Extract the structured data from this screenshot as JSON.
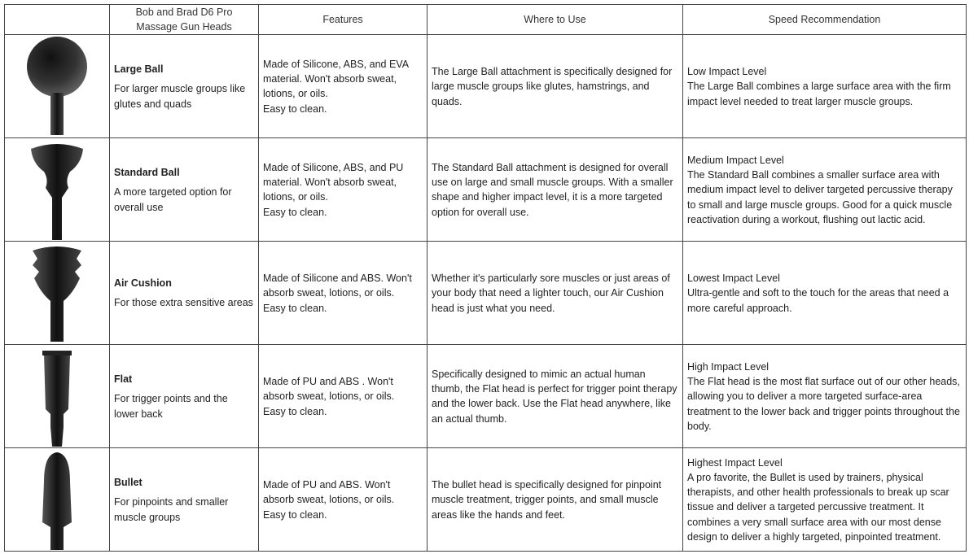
{
  "headers": [
    "",
    "Bob and Brad D6 Pro Massage Gun Heads",
    "Features",
    "Where to Use",
    "Speed Recommendation"
  ],
  "rows": [
    {
      "icon": "large-ball-head",
      "name": "Large Ball",
      "desc": "For larger muscle groups like glutes and quads",
      "features": "Made of Silicone, ABS, and EVA material. Won't absorb sweat, lotions, or oils.",
      "features_2": "Easy to clean.",
      "where": "The Large Ball attachment is specifically designed for large muscle groups like glutes, hamstrings, and quads.",
      "level": "Low Impact Level",
      "speed": "The Large Ball combines a large surface area with the firm impact level needed to treat larger muscle groups."
    },
    {
      "icon": "standard-ball-head",
      "name": "Standard Ball",
      "desc": "A more targeted option for overall use",
      "features": "Made of Silicone, ABS, and PU material. Won't absorb sweat, lotions, or oils.",
      "features_2": "Easy to clean.",
      "where": "The Standard Ball attachment is designed for overall use on large and small muscle groups. With a smaller shape and higher impact level, it is a more targeted option for overall use.",
      "level": "Medium Impact Level",
      "speed": "The Standard Ball combines a smaller surface area with medium impact level to deliver targeted percussive therapy to small and large muscle groups. Good for a quick muscle reactivation during a workout, flushing out lactic acid."
    },
    {
      "icon": "air-cushion-head",
      "name": "Air Cushion",
      "desc": "For those extra sensitive areas",
      "features": "Made of Silicone and ABS. Won't absorb sweat, lotions, or oils.",
      "features_2": "Easy to clean.",
      "where": "Whether it's particularly sore muscles or just areas of your body that need a lighter touch, our Air Cushion head is just what you need.",
      "level": "Lowest Impact Level",
      "speed": "Ultra-gentle and soft to the touch for the areas that need a more careful approach."
    },
    {
      "icon": "flat-head",
      "name": "Flat",
      "desc": "For trigger points and the lower back",
      "features": "Made of PU and ABS . Won't absorb sweat, lotions, or oils.",
      "features_2": "Easy to clean.",
      "where": "Specifically designed to mimic an actual human thumb, the Flat head is perfect for trigger point therapy and the lower back. Use the Flat head anywhere, like an actual thumb.",
      "level": "High Impact Level",
      "speed": "The Flat head is the most flat surface out of our other heads, allowing you to deliver a more targeted surface-area treatment to the lower back and trigger points throughout the body."
    },
    {
      "icon": "bullet-head",
      "name": "Bullet",
      "desc": "For pinpoints and smaller muscle groups",
      "features": "Made of PU and ABS. Won't absorb sweat, lotions, or oils.",
      "features_2": "Easy to clean.",
      "where": "The bullet head is specifically designed for pinpoint muscle treatment, trigger points, and small muscle areas like the hands and feet.",
      "level": "Highest Impact Level",
      "speed": "A pro favorite, the Bullet is used by trainers, physical therapists, and other health professionals to break up scar tissue and deliver a targeted percussive treatment. It combines a very small surface area with our most dense design to deliver a highly targeted, pinpointed treatment."
    }
  ]
}
